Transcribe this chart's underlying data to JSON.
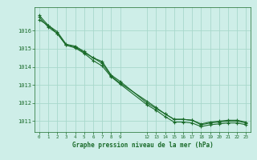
{
  "bg_color": "#ceeee8",
  "grid_color": "#a8d8cc",
  "line_color": "#1a6b2a",
  "title": "Graphe pression niveau de la mer (hPa)",
  "ylim": [
    1010.4,
    1017.3
  ],
  "yticks": [
    1011,
    1012,
    1013,
    1014,
    1015,
    1016
  ],
  "xlim": [
    -0.5,
    23.5
  ],
  "xticks": [
    0,
    1,
    2,
    3,
    4,
    5,
    6,
    7,
    8,
    9,
    12,
    13,
    14,
    15,
    16,
    17,
    18,
    19,
    20,
    21,
    22,
    23
  ],
  "xlabel_gap_after_9": true,
  "series1_x": [
    0,
    1,
    2,
    3,
    4,
    5,
    6,
    7,
    8,
    9,
    12,
    13,
    14,
    15,
    16,
    17,
    18,
    19,
    20,
    21,
    22,
    23
  ],
  "series1_y": [
    1016.6,
    1016.3,
    1015.85,
    1015.2,
    1015.1,
    1014.8,
    1014.5,
    1014.3,
    1013.55,
    1013.2,
    1012.0,
    1011.7,
    1011.4,
    1011.1,
    1011.1,
    1011.05,
    1010.8,
    1010.9,
    1010.95,
    1011.0,
    1011.0,
    1010.9
  ],
  "series2_x": [
    0,
    1,
    2,
    3,
    4,
    5,
    6,
    7,
    8,
    9,
    12,
    13,
    14,
    15,
    16,
    17,
    18,
    19,
    20,
    21,
    22,
    23
  ],
  "series2_y": [
    1016.75,
    1016.2,
    1015.85,
    1015.2,
    1015.05,
    1014.75,
    1014.35,
    1014.05,
    1013.45,
    1013.05,
    1011.9,
    1011.6,
    1011.25,
    1010.95,
    1010.95,
    1010.9,
    1010.7,
    1010.8,
    1010.85,
    1010.9,
    1010.9,
    1010.8
  ],
  "series3_x": [
    0,
    1,
    2,
    3,
    4,
    5,
    6,
    7,
    8,
    9,
    12,
    13,
    14,
    15,
    16,
    17,
    18,
    19,
    20,
    21,
    22,
    23
  ],
  "series3_y": [
    1016.85,
    1016.3,
    1015.95,
    1015.25,
    1015.15,
    1014.85,
    1014.5,
    1014.2,
    1013.5,
    1013.1,
    1012.1,
    1011.75,
    1011.4,
    1011.1,
    1011.1,
    1011.05,
    1010.85,
    1010.95,
    1011.0,
    1011.05,
    1011.05,
    1010.95
  ]
}
